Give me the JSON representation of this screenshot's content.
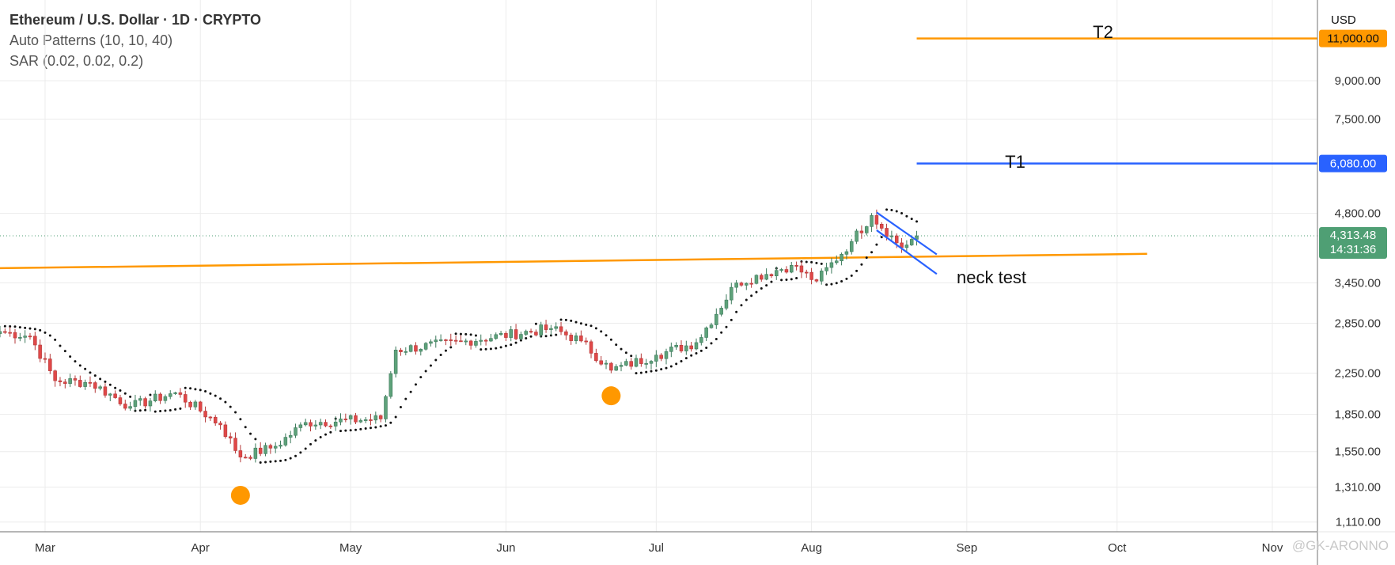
{
  "legend": {
    "title": "Ethereum / U.S. Dollar · 1D · CRYPTO",
    "indicator1": "Auto Patterns (10, 10, 40)",
    "indicator2": "SAR (0.02, 0.02, 0.2)"
  },
  "axis": {
    "currency": "USD",
    "price_ticks": [
      {
        "label": "9,000.00",
        "value": 9000
      },
      {
        "label": "7,500.00",
        "value": 7500
      },
      {
        "label": "4,800.00",
        "value": 4800
      },
      {
        "label": "3,450.00",
        "value": 3450
      },
      {
        "label": "2,850.00",
        "value": 2850
      },
      {
        "label": "2,250.00",
        "value": 2250
      },
      {
        "label": "1,850.00",
        "value": 1850
      },
      {
        "label": "1,550.00",
        "value": 1550
      },
      {
        "label": "1,310.00",
        "value": 1310
      },
      {
        "label": "1,110.00",
        "value": 1110
      }
    ],
    "month_ticks": [
      {
        "label": "Mar",
        "date": "2025-03-01"
      },
      {
        "label": "Apr",
        "date": "2025-04-01"
      },
      {
        "label": "May",
        "date": "2025-05-01"
      },
      {
        "label": "Jun",
        "date": "2025-06-01"
      },
      {
        "label": "Jul",
        "date": "2025-07-01"
      },
      {
        "label": "Aug",
        "date": "2025-08-01"
      },
      {
        "label": "Sep",
        "date": "2025-09-01"
      },
      {
        "label": "Oct",
        "date": "2025-10-01"
      },
      {
        "label": "Nov",
        "date": "2025-11-01"
      }
    ]
  },
  "badges": {
    "t2_price": "11,000.00",
    "t1_price": "6,080.00",
    "last_price": "4,313.48",
    "countdown": "14:31:36"
  },
  "annotations": {
    "t2_label": "T2",
    "t1_label": "T1",
    "neck_label": "neck test"
  },
  "watermark": "@GK-ARONNO",
  "colors": {
    "up": "#26a69a",
    "up_fill": "#5ea27a",
    "down": "#e04848",
    "orange": "#ff9800",
    "blue": "#2962ff",
    "last_badge": "#4f9f74",
    "grid": "#ececec"
  },
  "chart_data": {
    "type": "candlestick",
    "title": "Ethereum / U.S. Dollar · 1D · CRYPTO",
    "scale": "log",
    "x_range": [
      "2025-02-20",
      "2025-11-10"
    ],
    "y_range": [
      1060,
      13200
    ],
    "legend_position": "top-left",
    "grid": true,
    "last_price": 4313.48,
    "ohlc_anchor_closes": [
      {
        "date": "2025-02-20",
        "close": 2740
      },
      {
        "date": "2025-02-26",
        "close": 2680
      },
      {
        "date": "2025-03-03",
        "close": 2170
      },
      {
        "date": "2025-03-10",
        "close": 2150
      },
      {
        "date": "2025-03-18",
        "close": 1920
      },
      {
        "date": "2025-03-27",
        "close": 2050
      },
      {
        "date": "2025-04-05",
        "close": 1760
      },
      {
        "date": "2025-04-09",
        "close": 1510
      },
      {
        "date": "2025-04-16",
        "close": 1590
      },
      {
        "date": "2025-04-22",
        "close": 1780
      },
      {
        "date": "2025-05-07",
        "close": 1810
      },
      {
        "date": "2025-05-10",
        "close": 2510
      },
      {
        "date": "2025-05-24",
        "close": 2620
      },
      {
        "date": "2025-06-10",
        "close": 2780
      },
      {
        "date": "2025-06-16",
        "close": 2620
      },
      {
        "date": "2025-06-22",
        "close": 2280
      },
      {
        "date": "2025-07-01",
        "close": 2450
      },
      {
        "date": "2025-07-09",
        "close": 2600
      },
      {
        "date": "2025-07-17",
        "close": 3450
      },
      {
        "date": "2025-07-28",
        "close": 3750
      },
      {
        "date": "2025-08-02",
        "close": 3480
      },
      {
        "date": "2025-08-09",
        "close": 4200
      },
      {
        "date": "2025-08-13",
        "close": 4750
      },
      {
        "date": "2025-08-19",
        "close": 4080
      },
      {
        "date": "2025-08-22",
        "close": 4313.48
      }
    ],
    "horizontal_levels": [
      {
        "name": "T2",
        "value": 11000,
        "from": "2025-08-22"
      },
      {
        "name": "T1",
        "value": 6080,
        "from": "2025-08-22"
      }
    ],
    "neckline": {
      "from": {
        "date": "2025-02-20",
        "value": 3700
      },
      "to": {
        "date": "2025-10-07",
        "value": 3960
      }
    },
    "flag_channel": {
      "upper": [
        {
          "date": "2025-08-14",
          "value": 4820
        },
        {
          "date": "2025-08-26",
          "value": 3950
        }
      ],
      "lower": [
        {
          "date": "2025-08-14",
          "value": 4430
        },
        {
          "date": "2025-08-26",
          "value": 3600
        }
      ]
    },
    "pivot_markers": [
      {
        "date": "2025-04-09",
        "value": 1260
      },
      {
        "date": "2025-06-22",
        "value": 2020
      }
    ]
  }
}
